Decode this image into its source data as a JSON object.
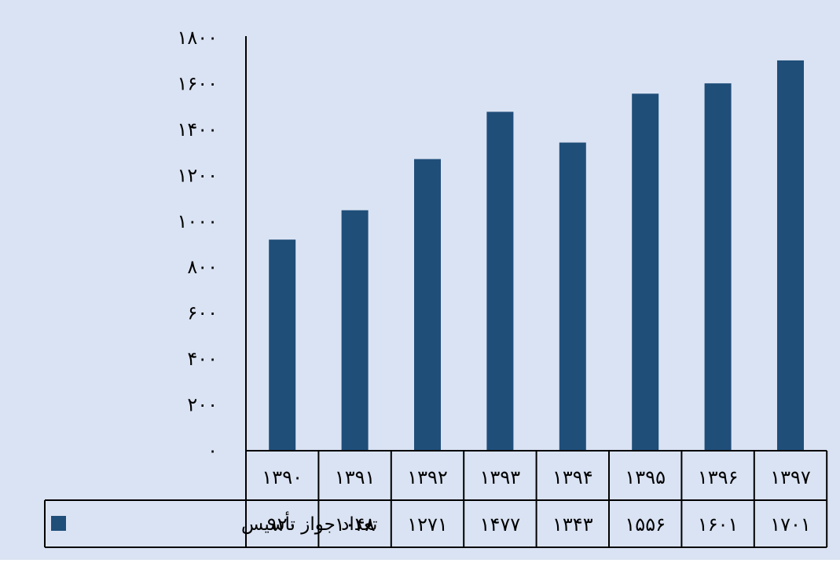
{
  "chart_data": {
    "type": "bar",
    "categories": [
      "۱۳۹۰",
      "۱۳۹۱",
      "۱۳۹۲",
      "۱۳۹۳",
      "۱۳۹۴",
      "۱۳۹۵",
      "۱۳۹۶",
      "۱۳۹۷"
    ],
    "series": [
      {
        "name": "تعداد جواز تأسیس",
        "values": [
          920,
          1048,
          1271,
          1477,
          1343,
          1556,
          1601,
          1701
        ],
        "value_labels": [
          "۹۲۰",
          "۱۰۴۸",
          "۱۲۷۱",
          "۱۴۷۷",
          "۱۳۴۳",
          "۱۵۵۶",
          "۱۶۰۱",
          "۱۷۰۱"
        ]
      }
    ],
    "y_ticks": [
      0,
      200,
      400,
      600,
      800,
      1000,
      1200,
      1400,
      1600,
      1800
    ],
    "y_tick_labels": [
      "۰",
      "۲۰۰",
      "۴۰۰",
      "۶۰۰",
      "۸۰۰",
      "۱۰۰۰",
      "۱۲۰۰",
      "۱۴۰۰",
      "۱۶۰۰",
      "۱۸۰۰"
    ],
    "ylim": [
      0,
      1800
    ],
    "grid": false,
    "legend": "data-table-left",
    "data_table": true,
    "colors": {
      "bar": "#1f4e79",
      "background": "#dae3f3",
      "table_border": "#000000"
    }
  }
}
